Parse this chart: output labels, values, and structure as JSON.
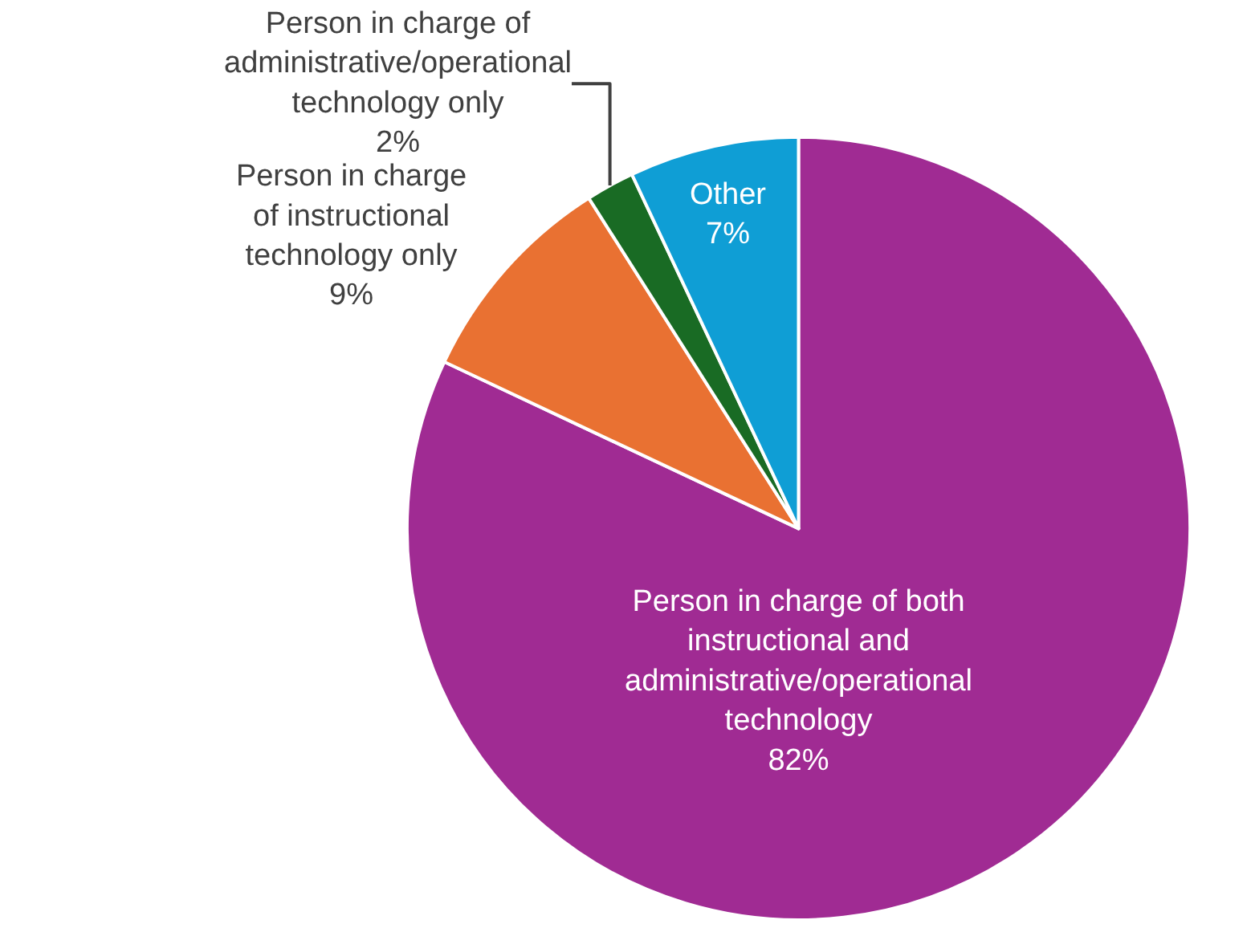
{
  "chart_data": {
    "type": "pie",
    "categories": [
      "Person in charge of both instructional and administrative/operational technology",
      "Person in charge of instructional technology only",
      "Person in charge of administrative/operational technology only",
      "Other"
    ],
    "values": [
      82,
      9,
      2,
      7
    ],
    "value_labels": [
      "82%",
      "9%",
      "2%",
      "7%"
    ],
    "colors": [
      "#a02b93",
      "#e97132",
      "#196b24",
      "#0f9ed5"
    ],
    "legend": false
  }
}
